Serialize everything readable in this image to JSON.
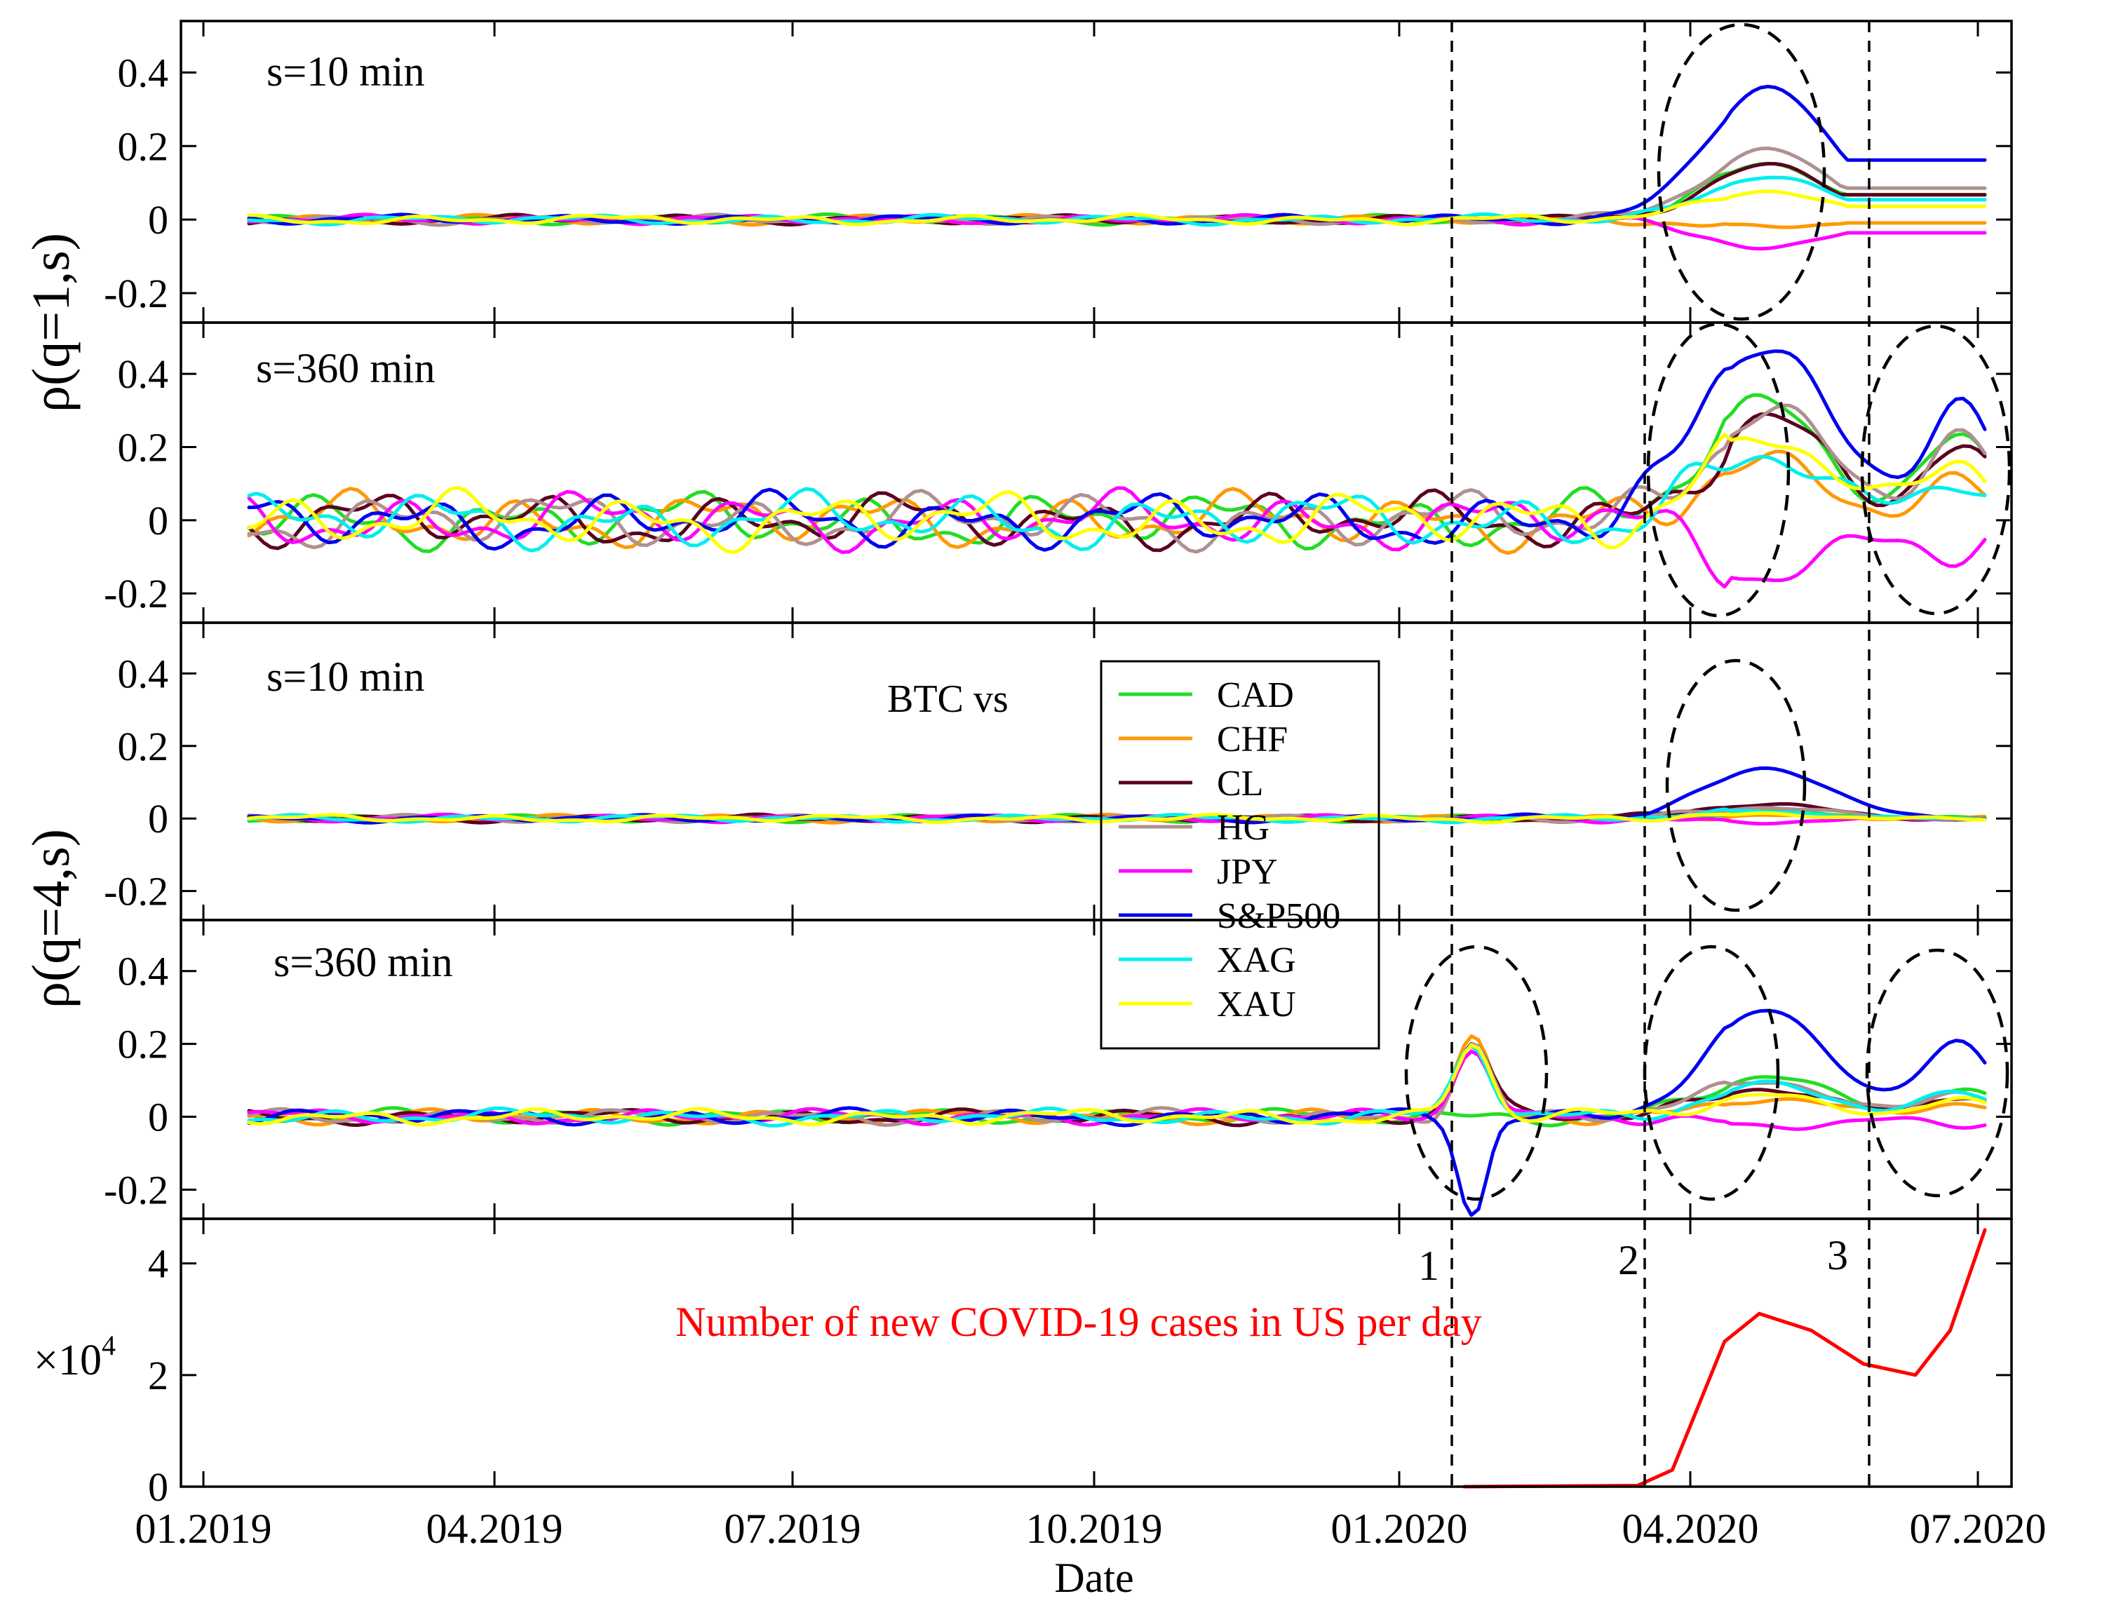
{
  "chart_data": {
    "type": "line",
    "xlabel": "Date",
    "x_ticks": [
      "01.2019",
      "04.2019",
      "07.2019",
      "10.2019",
      "01.2020",
      "04.2020",
      "07.2020"
    ],
    "legend_title": "BTC vs",
    "legend_position": "center",
    "series": [
      {
        "name": "CAD",
        "color": "#22dd22"
      },
      {
        "name": "CHF",
        "color": "#ff9900"
      },
      {
        "name": "CL",
        "color": "#5a0020"
      },
      {
        "name": "HG",
        "color": "#b09090"
      },
      {
        "name": "JPY",
        "color": "#ff00ff"
      },
      {
        "name": "S&P500",
        "color": "#0000ee"
      },
      {
        "name": "XAG",
        "color": "#00eeee"
      },
      {
        "name": "XAU",
        "color": "#ffff00"
      }
    ],
    "y_ticks": [
      "0.4",
      "0.2",
      "0",
      "-0.2"
    ],
    "ylim": [
      -0.28,
      0.54
    ],
    "y_title_top": "ρ(q=1,s)",
    "y_title_bottom": "ρ(q=4,s)",
    "panels": [
      {
        "label": "s=10 min",
        "q": 1,
        "peak": {
          "S&P500": 0.36,
          "HG": 0.19,
          "CL": 0.15,
          "CAD": 0.15,
          "XAG": 0.12,
          "XAU": 0.08,
          "CHF": -0.02,
          "JPY": -0.08
        }
      },
      {
        "label": "s=360 min",
        "q": 1,
        "peak": {
          "S&P500": 0.49,
          "CAD": 0.32,
          "HG": 0.31,
          "CL": 0.27,
          "XAG": 0.17,
          "XAU": 0.23,
          "CHF": 0.15,
          "JPY": -0.15
        }
      },
      {
        "label": "s=10 min",
        "q": 4,
        "peak": {
          "S&P500": 0.14,
          "CL": 0.04,
          "HG": 0.03,
          "CAD": 0.02,
          "XAG": 0.02,
          "XAU": 0.01,
          "CHF": 0.01,
          "JPY": -0.01
        }
      },
      {
        "label": "s=360 min",
        "q": 4,
        "peak": {
          "S&P500": 0.29,
          "CAD": 0.11,
          "HG": 0.1,
          "XAG": 0.09,
          "CL": 0.08,
          "XAU": 0.06,
          "CHF": 0.05,
          "JPY": -0.03
        }
      }
    ],
    "events": [
      {
        "label": "1",
        "date": "2020-01-20"
      },
      {
        "label": "2",
        "date": "2020-03-11"
      },
      {
        "label": "3",
        "date": "2020-05-25"
      }
    ],
    "covid": {
      "title": "Number of new COVID-19 cases in US per day",
      "ylabel": "×10",
      "ylabel_exp": "4",
      "color": "#ff0000",
      "y_ticks": [
        "4",
        "2",
        "0"
      ],
      "ylim": [
        0,
        4.8
      ],
      "points": [
        [
          0.7,
          0
        ],
        [
          0.8,
          0.02
        ],
        [
          0.82,
          0.3
        ],
        [
          0.85,
          2.6
        ],
        [
          0.87,
          3.1
        ],
        [
          0.9,
          2.8
        ],
        [
          0.93,
          2.2
        ],
        [
          0.96,
          2.0
        ],
        [
          0.98,
          2.8
        ],
        [
          1.0,
          4.6
        ]
      ]
    }
  }
}
